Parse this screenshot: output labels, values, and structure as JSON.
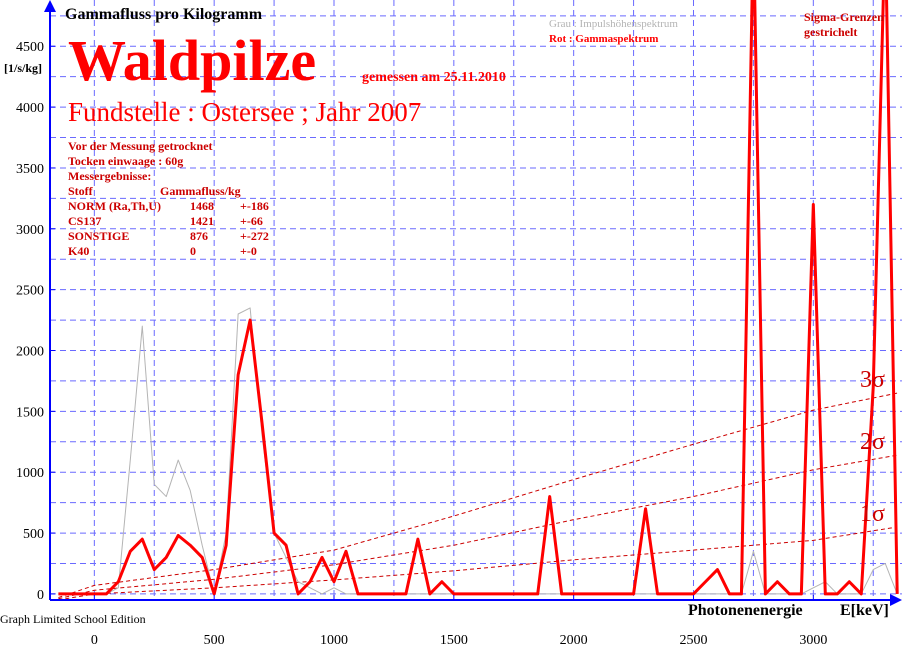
{
  "chart_data": {
    "type": "line",
    "title": "Gammafluss pro Kilogramm",
    "ylabel": "[1/s/kg]",
    "xlabel": "Photonenenergie",
    "xunit": "E[keV]",
    "heading": "Waldpilze",
    "date_note": "gemessen am 25.11.2010",
    "subheading": "Fundstelle : Ostersee ; Jahr 2007",
    "sigma_note": [
      "Sigma-Grenzen",
      "gestrichelt"
    ],
    "xlim": [
      -185,
      3370
    ],
    "ylim": [
      -50,
      4880
    ],
    "xticks": [
      0,
      500,
      1000,
      1500,
      2000,
      2500,
      3000
    ],
    "yticks": [
      0,
      500,
      1000,
      1500,
      2000,
      2500,
      3000,
      3500,
      4000,
      4500
    ],
    "minor_xticks": [
      250,
      750,
      1250,
      1750,
      2250,
      2750,
      3250
    ],
    "minor_yticks": [
      250,
      750,
      1250,
      1750,
      2250,
      2750,
      3250,
      3750,
      4250,
      4750
    ],
    "grid": true,
    "x": [
      -150,
      -100,
      -50,
      0,
      50,
      100,
      150,
      200,
      250,
      300,
      350,
      400,
      450,
      500,
      550,
      600,
      650,
      700,
      750,
      800,
      850,
      900,
      950,
      1000,
      1050,
      1100,
      1150,
      1200,
      1250,
      1300,
      1350,
      1400,
      1450,
      1500,
      1550,
      1600,
      1650,
      1700,
      1750,
      1800,
      1850,
      1900,
      1950,
      2000,
      2050,
      2100,
      2150,
      2200,
      2250,
      2300,
      2350,
      2400,
      2450,
      2500,
      2550,
      2600,
      2650,
      2700,
      2750,
      2800,
      2850,
      2900,
      2950,
      3000,
      3050,
      3100,
      3150,
      3200,
      3250,
      3300,
      3350
    ],
    "series": [
      {
        "name": "Grau : Impulshöhenspektrum",
        "color": "#b4b4b4",
        "width": 1,
        "values": [
          0,
          0,
          0,
          0,
          0,
          50,
          1100,
          2200,
          900,
          800,
          1100,
          850,
          400,
          0,
          500,
          2300,
          2350,
          1300,
          500,
          300,
          100,
          50,
          0,
          50,
          0,
          0,
          0,
          0,
          0,
          0,
          0,
          0,
          0,
          0,
          0,
          0,
          0,
          0,
          0,
          0,
          0,
          0,
          0,
          0,
          0,
          0,
          0,
          0,
          0,
          0,
          0,
          0,
          0,
          0,
          0,
          0,
          0,
          0,
          350,
          0,
          0,
          0,
          0,
          50,
          100,
          0,
          0,
          0,
          200,
          250,
          0
        ]
      },
      {
        "name": "Rot  : Gammaspektrum",
        "color": "#ff0000",
        "width": 3,
        "values": [
          0,
          0,
          0,
          0,
          0,
          100,
          350,
          450,
          200,
          300,
          480,
          400,
          300,
          0,
          400,
          1800,
          2250,
          1400,
          500,
          400,
          0,
          100,
          300,
          100,
          350,
          0,
          0,
          0,
          0,
          0,
          450,
          0,
          100,
          0,
          0,
          0,
          0,
          0,
          0,
          0,
          0,
          800,
          0,
          0,
          0,
          0,
          0,
          0,
          0,
          700,
          0,
          0,
          0,
          0,
          100,
          200,
          0,
          0,
          5500,
          0,
          100,
          0,
          0,
          3200,
          0,
          0,
          100,
          0,
          1700,
          5500,
          0
        ]
      }
    ],
    "sigma_curves": {
      "x": [
        -150,
        0,
        500,
        1000,
        1500,
        2000,
        2500,
        3000,
        3350
      ],
      "color": "#cc0000",
      "series": [
        {
          "name": "1σ",
          "values": [
            -50,
            0,
            50,
            115,
            190,
            280,
            360,
            440,
            550
          ]
        },
        {
          "name": "2σ",
          "values": [
            -40,
            30,
            120,
            240,
            400,
            610,
            800,
            1020,
            1140
          ]
        },
        {
          "name": "3σ",
          "values": [
            -30,
            70,
            200,
            360,
            640,
            940,
            1230,
            1510,
            1650
          ]
        }
      ]
    }
  },
  "notes": [
    "Vor der Messung getrocknet",
    "Tocken einwaage : 60g",
    "Messergebnisse:"
  ],
  "results": {
    "header": [
      "Stoff",
      "Gammafluss/kg"
    ],
    "rows": [
      [
        "NORM (Ra,Th,U)",
        "1468",
        "+-186"
      ],
      [
        "CS137",
        "1421",
        "+-66"
      ],
      [
        "SONSTIGE",
        "876",
        "+-272"
      ],
      [
        "K40",
        "0",
        "+-0"
      ]
    ]
  },
  "footer": "Graph Limited School Edition"
}
